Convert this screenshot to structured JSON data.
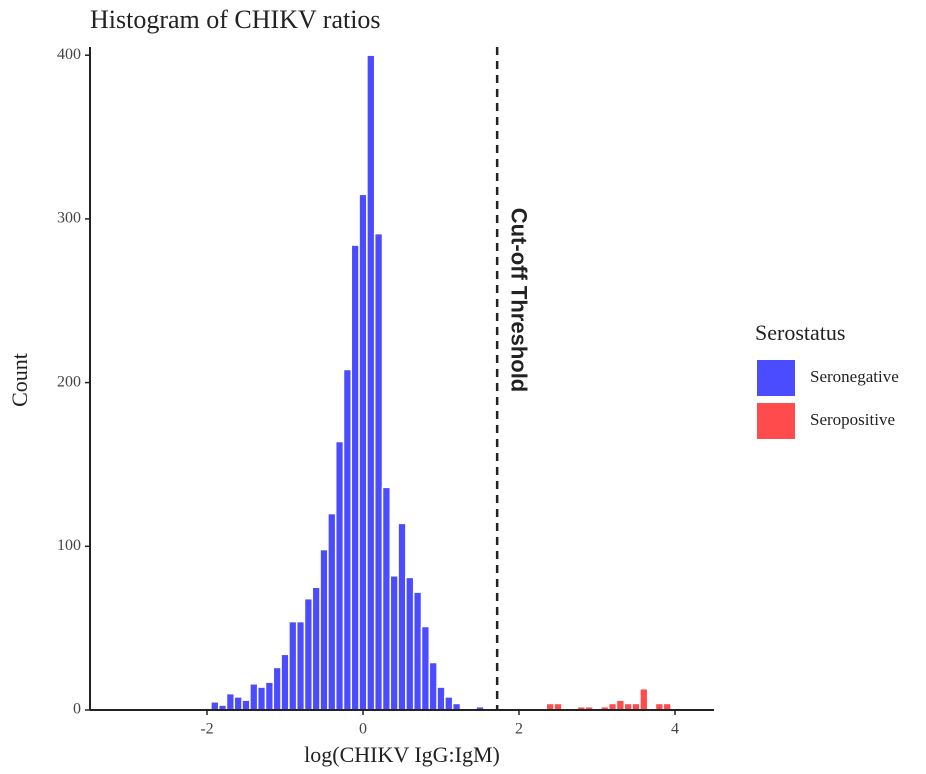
{
  "chart_data": {
    "type": "histogram",
    "title": "Histogram of CHIKV ratios",
    "x_label": "log(CHIKV IgG:IgM)",
    "y_label": "Count",
    "bins": [
      -1.95,
      -1.85,
      -1.75,
      -1.65,
      -1.55,
      -1.45,
      -1.35,
      -1.25,
      -1.15,
      -1.05,
      -0.95,
      -0.85,
      -0.75,
      -0.65,
      -0.55,
      -0.45,
      -0.35,
      -0.25,
      -0.15,
      -0.05,
      0.05,
      0.15,
      0.25,
      0.35,
      0.45,
      0.55,
      0.65,
      0.75,
      0.85,
      0.95,
      1.05,
      1.15,
      1.25,
      1.35,
      1.45,
      1.55,
      1.65,
      1.75,
      1.85,
      1.95,
      2.05,
      2.15,
      2.25,
      2.35,
      2.45,
      2.55,
      2.65,
      2.75,
      2.85,
      2.95,
      3.05,
      3.15,
      3.25,
      3.35,
      3.45,
      3.55,
      3.65,
      3.75,
      3.85,
      3.95
    ],
    "series": [
      {
        "name": "Seronegative",
        "color": "#4b4bff",
        "values": [
          5,
          3,
          10,
          8,
          6,
          16,
          14,
          17,
          26,
          34,
          54,
          54,
          68,
          75,
          98,
          120,
          164,
          208,
          284,
          315,
          400,
          291,
          136,
          82,
          114,
          81,
          72,
          51,
          29,
          14,
          8,
          4,
          0,
          0,
          2,
          0,
          0,
          0,
          0,
          0,
          0,
          0,
          0,
          0,
          0,
          0,
          0,
          0,
          0,
          0,
          0,
          0,
          0,
          0,
          0,
          0,
          0,
          0,
          0
        ]
      },
      {
        "name": "Seropositive",
        "color": "#ff4b4b",
        "values": [
          0,
          0,
          0,
          0,
          0,
          0,
          0,
          0,
          0,
          0,
          0,
          0,
          0,
          0,
          0,
          0,
          0,
          0,
          0,
          0,
          0,
          0,
          0,
          0,
          0,
          0,
          0,
          0,
          0,
          0,
          0,
          0,
          0,
          0,
          0,
          0,
          0,
          0,
          0,
          0,
          0,
          0,
          0,
          4,
          4,
          0,
          0,
          2,
          2,
          0,
          2,
          4,
          6,
          4,
          4,
          13,
          0,
          4,
          4
        ]
      }
    ],
    "legend_title": "Serostatus",
    "threshold": {
      "x": 1.72,
      "label": "Cut-off Threshold"
    },
    "xlim": [
      -3.5,
      4.5
    ],
    "ylim": [
      0,
      405
    ],
    "xticks": [
      -2,
      0,
      2,
      4
    ],
    "yticks": [
      0,
      100,
      200,
      300,
      400
    ]
  }
}
